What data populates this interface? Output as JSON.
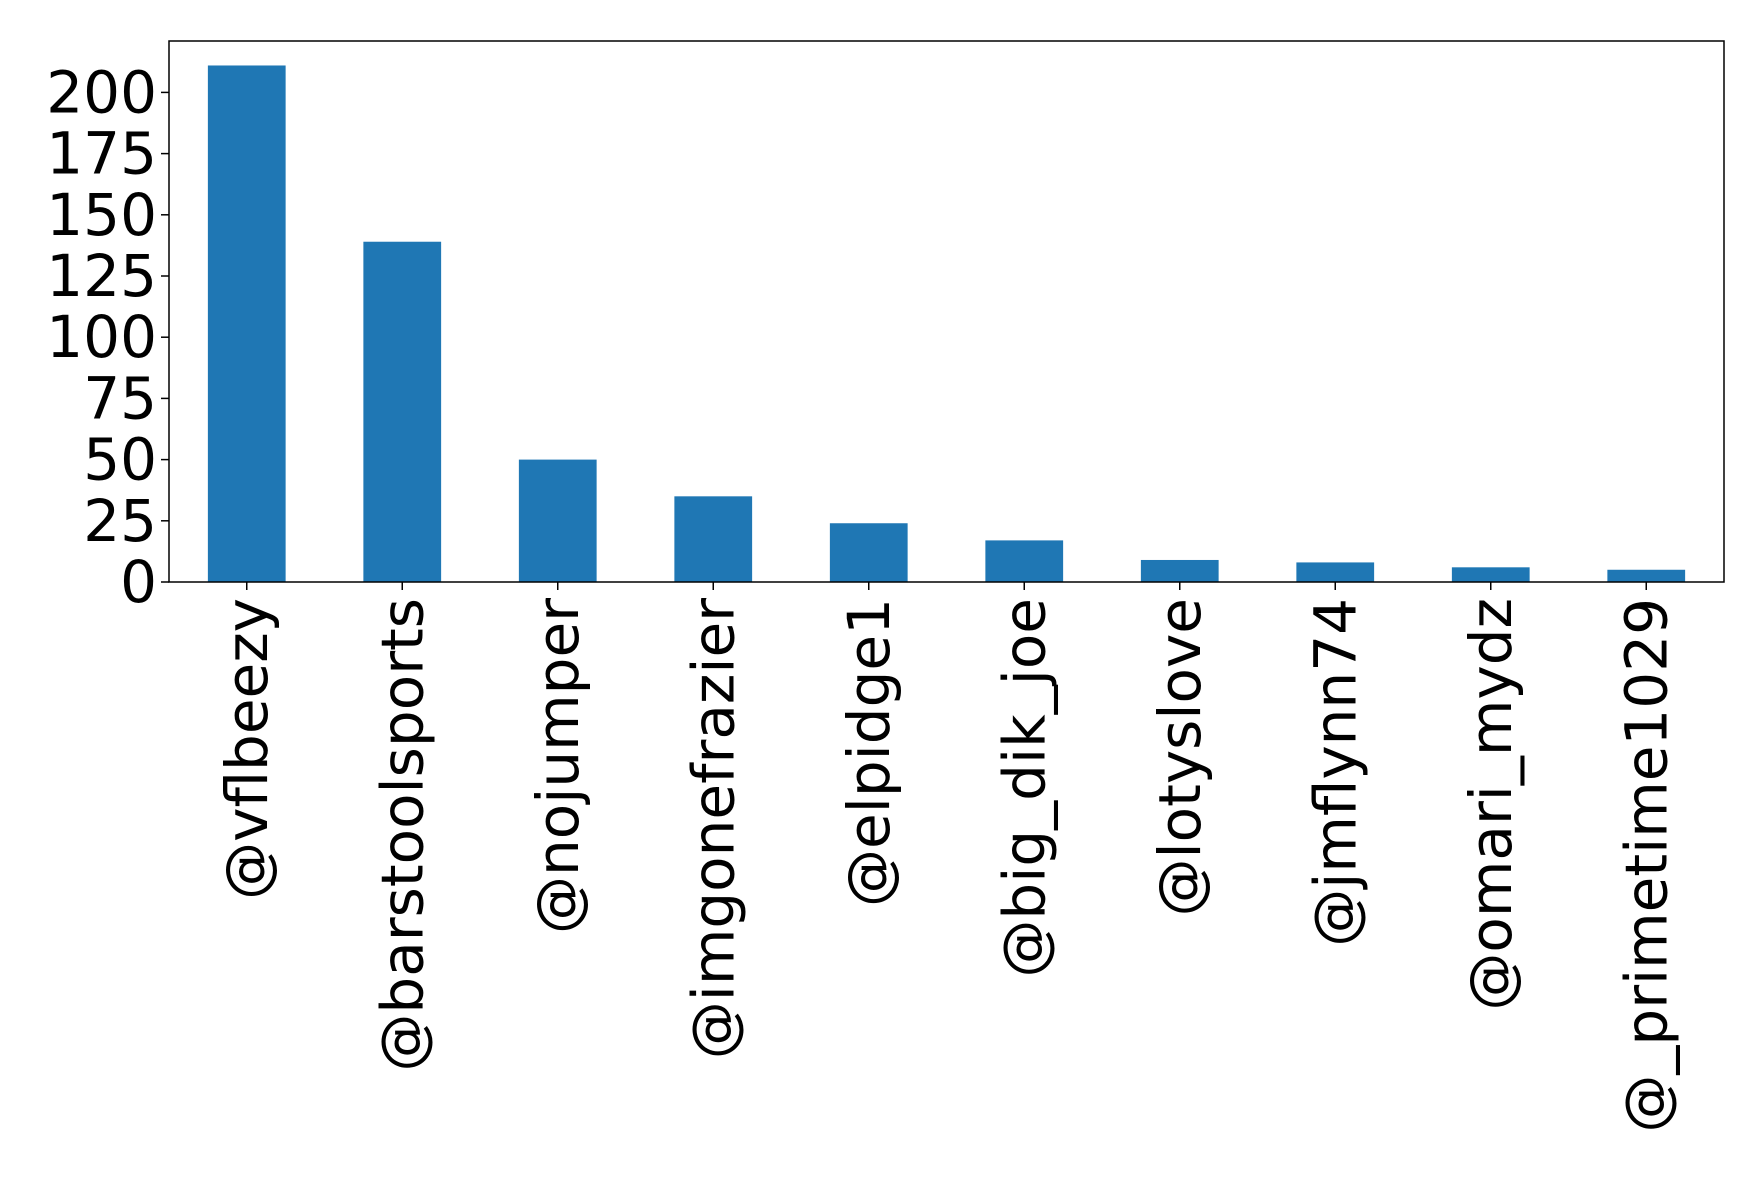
{
  "chart_data": {
    "type": "bar",
    "title": "",
    "xlabel": "",
    "ylabel": "",
    "categories": [
      "@vflbeezy",
      "@barstoolsports",
      "@nojumper",
      "@imgonefrazier",
      "@elpidge1",
      "@big_dik_joe",
      "@lotyslove",
      "@jmflynn74",
      "@omari_mydz",
      "@_primetime1029"
    ],
    "values": [
      211,
      139,
      50,
      35,
      24,
      17,
      9,
      8,
      6,
      5
    ],
    "ylim": [
      0,
      221
    ],
    "yticks": [
      0,
      25,
      50,
      75,
      100,
      125,
      150,
      175,
      200
    ],
    "bar_color": "#1f77b4",
    "grid": false,
    "legend": "none"
  }
}
